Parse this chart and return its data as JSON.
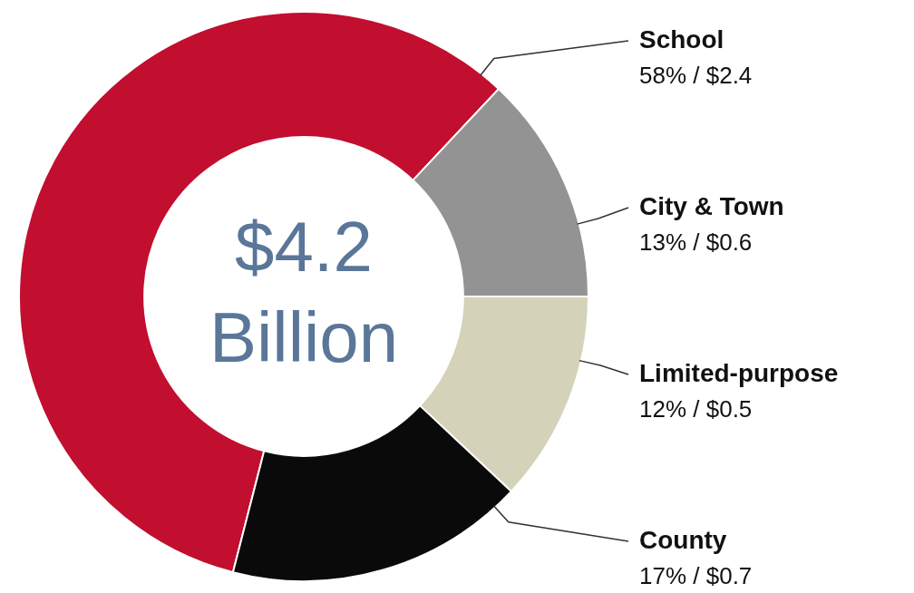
{
  "chart_data": {
    "type": "donut",
    "categories": [
      "School",
      "City & Town",
      "Limited-purpose",
      "County"
    ],
    "values": [
      58,
      13,
      12,
      17
    ],
    "value_labels": [
      "58% / $2.4",
      "13% / $0.6",
      "12% / $0.5",
      "17% / $0.7"
    ],
    "colors": [
      "#c20e2f",
      "#939393",
      "#d4d2b9",
      "#0a0a0a"
    ],
    "annotations": [
      "$4.2",
      "Billion"
    ],
    "legend": false
  }
}
